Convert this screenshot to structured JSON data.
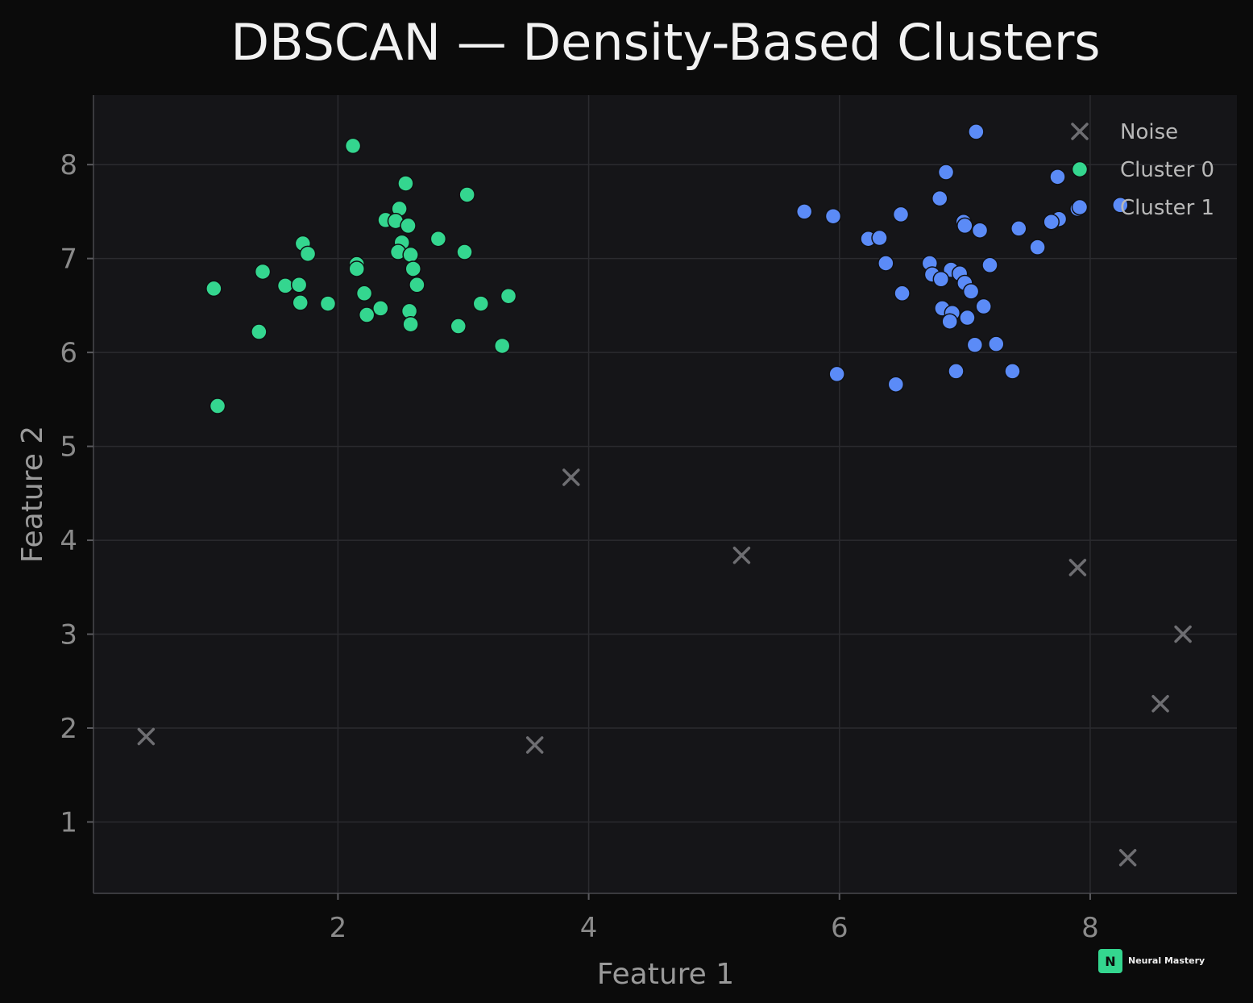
{
  "chart_data": {
    "type": "scatter",
    "title": "DBSCAN — Density-Based Clusters",
    "xlabel": "Feature 1",
    "ylabel": "Feature 2",
    "xlim": [
      0.05,
      9.17
    ],
    "ylim": [
      0.24,
      8.74
    ],
    "xticks": [
      2,
      4,
      6,
      8
    ],
    "yticks": [
      1,
      2,
      3,
      4,
      5,
      6,
      7,
      8
    ],
    "grid": true,
    "legend_position": "top-right",
    "series": [
      {
        "name": "Noise",
        "marker": "x",
        "color": "#6e6e72",
        "points": [
          [
            0.47,
            1.91
          ],
          [
            3.57,
            1.82
          ],
          [
            3.86,
            4.67
          ],
          [
            5.22,
            3.84
          ],
          [
            7.9,
            3.71
          ],
          [
            8.3,
            0.62
          ],
          [
            8.56,
            2.26
          ],
          [
            8.74,
            3.0
          ]
        ]
      },
      {
        "name": "Cluster 0",
        "marker": "circle",
        "color": "#34d68f",
        "points": [
          [
            2.12,
            8.2
          ],
          [
            2.54,
            7.8
          ],
          [
            3.03,
            7.68
          ],
          [
            2.49,
            7.53
          ],
          [
            2.38,
            7.41
          ],
          [
            2.46,
            7.4
          ],
          [
            2.56,
            7.35
          ],
          [
            2.8,
            7.21
          ],
          [
            2.51,
            7.17
          ],
          [
            1.72,
            7.16
          ],
          [
            3.01,
            7.07
          ],
          [
            2.48,
            7.07
          ],
          [
            1.76,
            7.05
          ],
          [
            2.58,
            7.04
          ],
          [
            2.15,
            6.94
          ],
          [
            2.15,
            6.89
          ],
          [
            2.6,
            6.89
          ],
          [
            1.4,
            6.86
          ],
          [
            1.01,
            6.68
          ],
          [
            1.58,
            6.71
          ],
          [
            1.69,
            6.72
          ],
          [
            2.63,
            6.72
          ],
          [
            2.21,
            6.63
          ],
          [
            3.36,
            6.6
          ],
          [
            1.7,
            6.53
          ],
          [
            1.92,
            6.52
          ],
          [
            3.14,
            6.52
          ],
          [
            2.34,
            6.47
          ],
          [
            2.57,
            6.44
          ],
          [
            2.23,
            6.4
          ],
          [
            2.58,
            6.3
          ],
          [
            2.96,
            6.28
          ],
          [
            1.37,
            6.22
          ],
          [
            3.31,
            6.07
          ],
          [
            1.04,
            5.43
          ]
        ]
      },
      {
        "name": "Cluster 1",
        "marker": "circle",
        "color": "#5b8bf7",
        "points": [
          [
            7.09,
            8.35
          ],
          [
            6.85,
            7.92
          ],
          [
            7.74,
            7.87
          ],
          [
            6.8,
            7.64
          ],
          [
            8.24,
            7.57
          ],
          [
            7.9,
            7.53
          ],
          [
            5.72,
            7.5
          ],
          [
            5.95,
            7.45
          ],
          [
            6.49,
            7.47
          ],
          [
            7.75,
            7.42
          ],
          [
            7.69,
            7.39
          ],
          [
            6.99,
            7.39
          ],
          [
            7.0,
            7.35
          ],
          [
            7.12,
            7.3
          ],
          [
            7.43,
            7.32
          ],
          [
            6.23,
            7.21
          ],
          [
            6.32,
            7.22
          ],
          [
            7.58,
            7.12
          ],
          [
            6.37,
            6.95
          ],
          [
            6.72,
            6.95
          ],
          [
            7.2,
            6.93
          ],
          [
            6.89,
            6.88
          ],
          [
            6.74,
            6.83
          ],
          [
            6.96,
            6.84
          ],
          [
            6.81,
            6.78
          ],
          [
            7.0,
            6.74
          ],
          [
            7.05,
            6.65
          ],
          [
            6.5,
            6.63
          ],
          [
            7.15,
            6.49
          ],
          [
            6.82,
            6.47
          ],
          [
            6.9,
            6.42
          ],
          [
            7.02,
            6.37
          ],
          [
            6.88,
            6.33
          ],
          [
            7.08,
            6.08
          ],
          [
            7.25,
            6.09
          ],
          [
            6.93,
            5.8
          ],
          [
            7.38,
            5.8
          ],
          [
            5.98,
            5.77
          ],
          [
            6.45,
            5.66
          ]
        ]
      }
    ]
  },
  "watermark": {
    "letter": "N",
    "text": "Neural Mastery",
    "accent_color": "#34d68f"
  }
}
